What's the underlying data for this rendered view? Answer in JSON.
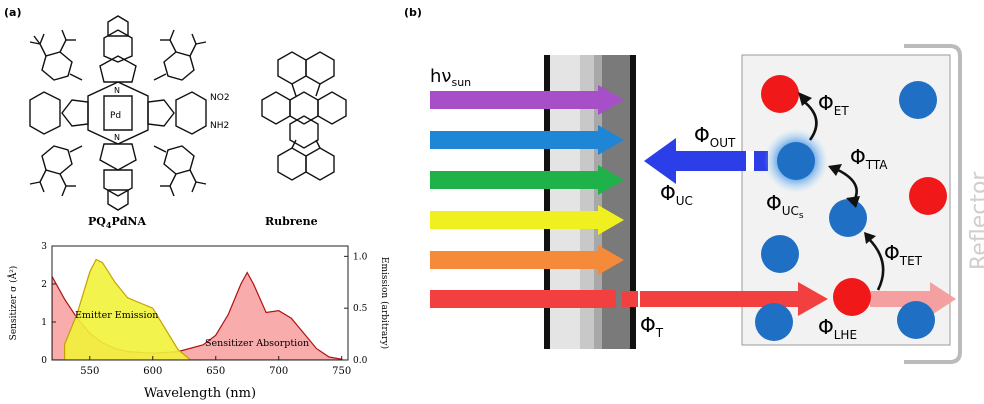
{
  "panel_a": {
    "label": "(a)",
    "molecule_1": {
      "name_prefix": "PQ",
      "name_sub": "4",
      "name_suffix": "PdNA",
      "no2": "NO2",
      "nh2": "NH2",
      "pd": "Pd",
      "n": "N"
    },
    "molecule_2": {
      "name": "Rubrene"
    },
    "chart_data": {
      "type": "area",
      "x_label": "Wavelength (nm)",
      "y_left_label": "Sensitizer σ (Å²)",
      "y_right_label": "Emission (arbitrary)",
      "xlim": [
        520,
        755
      ],
      "ylim_left": [
        0,
        3
      ],
      "ylim_right": [
        0,
        1.1
      ],
      "x_ticks": [
        "550",
        "600",
        "650",
        "700",
        "750"
      ],
      "y_left_ticks": [
        "0",
        "1",
        "2",
        "3"
      ],
      "y_right_ticks": [
        "0.0",
        "0.5",
        "1.0"
      ],
      "series": [
        {
          "name": "Emitter Emission",
          "axis": "right",
          "color": "#f2f23a",
          "x": [
            530,
            540,
            550,
            555,
            560,
            570,
            580,
            590,
            600,
            610,
            620,
            630
          ],
          "y": [
            0.15,
            0.45,
            0.85,
            0.97,
            0.94,
            0.75,
            0.6,
            0.55,
            0.5,
            0.3,
            0.1,
            0.0
          ]
        },
        {
          "name": "Sensitizer Absorption",
          "axis": "left",
          "color": "#f7a3a3",
          "x": [
            520,
            530,
            540,
            550,
            560,
            570,
            580,
            600,
            620,
            640,
            650,
            660,
            670,
            675,
            680,
            690,
            700,
            710,
            720,
            730,
            740,
            750
          ],
          "y": [
            2.2,
            1.6,
            1.1,
            0.7,
            0.45,
            0.3,
            0.22,
            0.18,
            0.22,
            0.4,
            0.65,
            1.2,
            2.0,
            2.3,
            2.0,
            1.25,
            1.3,
            1.1,
            0.7,
            0.3,
            0.08,
            0.02
          ]
        }
      ]
    }
  },
  "panel_b": {
    "label": "(b)",
    "h_nu_sun": "hν",
    "h_nu_sub": "sun",
    "phi": "Φ",
    "phi_out_sub": "OUT",
    "phi_uc_sub": "UC",
    "phi_ucs_sub": "UC",
    "phi_ucs_subsub": "s",
    "phi_tta_sub": "TTA",
    "phi_et_sub": "ET",
    "phi_tet_sub": "TET",
    "phi_lhe_sub": "LHE",
    "phi_t_sub": "T",
    "reflector": "Reflector",
    "arrow_colors": [
      "#a64fc8",
      "#1f86d6",
      "#1fb24a",
      "#f0f020",
      "#f48a3a",
      "#f24040"
    ],
    "emitter_color": "#1f6fc4",
    "sensitizer_color": "#f01818",
    "uc_arrow_color": "#2c3ee8"
  }
}
